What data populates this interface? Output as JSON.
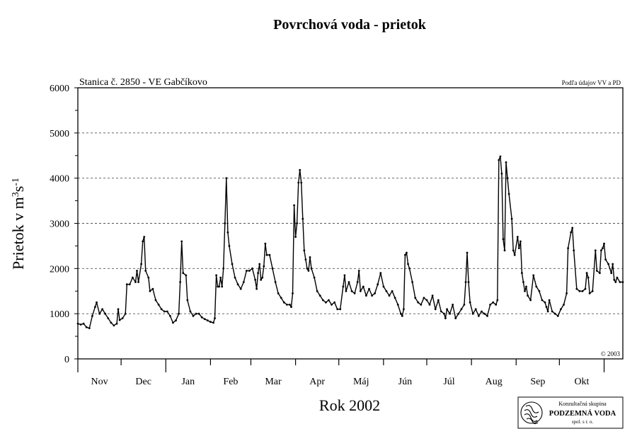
{
  "chart_data": {
    "type": "line",
    "title": "Povrchová voda - prietok",
    "station_label": "Stanica č. 2850 - VE Gabčíkovo",
    "source_note": "Podľa údajov VV a PD",
    "copyright": "© 2003",
    "xlabel": "Rok 2002",
    "ylabel": "Prietok v m³s⁻¹",
    "ylim": [
      0,
      6000
    ],
    "yticks": [
      0,
      1000,
      2000,
      3000,
      4000,
      5000,
      6000
    ],
    "grid": "horizontal dashed",
    "months": [
      "Nov",
      "Dec",
      "Jan",
      "Feb",
      "Mar",
      "Apr",
      "Máj",
      "Jún",
      "Júl",
      "Aug",
      "Sep",
      "Okt"
    ],
    "x_unit": "day index from 1 Nov",
    "series": [
      {
        "points": [
          [
            0,
            780
          ],
          [
            2,
            760
          ],
          [
            4,
            780
          ],
          [
            6,
            700
          ],
          [
            8,
            680
          ],
          [
            10,
            950
          ],
          [
            12,
            1150
          ],
          [
            13,
            1250
          ],
          [
            15,
            1000
          ],
          [
            17,
            1100
          ],
          [
            19,
            1000
          ],
          [
            21,
            900
          ],
          [
            23,
            800
          ],
          [
            25,
            740
          ],
          [
            27,
            780
          ],
          [
            28,
            1100
          ],
          [
            29,
            860
          ],
          [
            31,
            900
          ],
          [
            33,
            1000
          ],
          [
            34,
            1650
          ],
          [
            36,
            1650
          ],
          [
            38,
            1800
          ],
          [
            40,
            1700
          ],
          [
            41,
            1950
          ],
          [
            42,
            1700
          ],
          [
            44,
            2100
          ],
          [
            45,
            2600
          ],
          [
            46,
            2700
          ],
          [
            47,
            1950
          ],
          [
            49,
            1800
          ],
          [
            50,
            1500
          ],
          [
            52,
            1550
          ],
          [
            54,
            1300
          ],
          [
            56,
            1200
          ],
          [
            58,
            1100
          ],
          [
            60,
            1050
          ],
          [
            62,
            1050
          ],
          [
            64,
            950
          ],
          [
            66,
            800
          ],
          [
            68,
            850
          ],
          [
            70,
            1000
          ],
          [
            71,
            1700
          ],
          [
            72,
            2600
          ],
          [
            73,
            1900
          ],
          [
            75,
            1850
          ],
          [
            76,
            1300
          ],
          [
            78,
            1050
          ],
          [
            80,
            950
          ],
          [
            82,
            1000
          ],
          [
            84,
            1000
          ],
          [
            86,
            920
          ],
          [
            88,
            880
          ],
          [
            90,
            850
          ],
          [
            92,
            820
          ],
          [
            94,
            800
          ],
          [
            95,
            900
          ],
          [
            96,
            1850
          ],
          [
            97,
            1600
          ],
          [
            98,
            1600
          ],
          [
            99,
            1800
          ],
          [
            100,
            1600
          ],
          [
            101,
            2000
          ],
          [
            102,
            3000
          ],
          [
            103,
            4000
          ],
          [
            104,
            2800
          ],
          [
            105,
            2500
          ],
          [
            107,
            2100
          ],
          [
            109,
            1800
          ],
          [
            111,
            1650
          ],
          [
            113,
            1550
          ],
          [
            115,
            1700
          ],
          [
            117,
            1950
          ],
          [
            119,
            1950
          ],
          [
            121,
            2000
          ],
          [
            123,
            1750
          ],
          [
            124,
            1550
          ],
          [
            125,
            1900
          ],
          [
            126,
            2100
          ],
          [
            127,
            1750
          ],
          [
            128,
            1800
          ],
          [
            129,
            2050
          ],
          [
            130,
            2550
          ],
          [
            131,
            2300
          ],
          [
            133,
            2300
          ],
          [
            135,
            2000
          ],
          [
            137,
            1700
          ],
          [
            139,
            1450
          ],
          [
            141,
            1350
          ],
          [
            143,
            1250
          ],
          [
            145,
            1200
          ],
          [
            147,
            1200
          ],
          [
            148,
            1150
          ],
          [
            149,
            1450
          ],
          [
            150,
            3400
          ],
          [
            151,
            2700
          ],
          [
            152,
            3000
          ],
          [
            153,
            3900
          ],
          [
            154,
            4180
          ],
          [
            155,
            3900
          ],
          [
            156,
            3100
          ],
          [
            157,
            2400
          ],
          [
            158,
            2200
          ],
          [
            159,
            2000
          ],
          [
            160,
            1950
          ],
          [
            161,
            2250
          ],
          [
            162,
            2000
          ],
          [
            164,
            1800
          ],
          [
            166,
            1500
          ],
          [
            168,
            1400
          ],
          [
            170,
            1300
          ],
          [
            172,
            1250
          ],
          [
            174,
            1300
          ],
          [
            176,
            1200
          ],
          [
            178,
            1250
          ],
          [
            180,
            1100
          ],
          [
            182,
            1100
          ],
          [
            184,
            1600
          ],
          [
            185,
            1850
          ],
          [
            186,
            1500
          ],
          [
            188,
            1700
          ],
          [
            190,
            1500
          ],
          [
            192,
            1450
          ],
          [
            194,
            1700
          ],
          [
            195,
            1950
          ],
          [
            196,
            1500
          ],
          [
            198,
            1600
          ],
          [
            200,
            1400
          ],
          [
            202,
            1550
          ],
          [
            204,
            1400
          ],
          [
            206,
            1450
          ],
          [
            208,
            1650
          ],
          [
            210,
            1900
          ],
          [
            212,
            1600
          ],
          [
            214,
            1500
          ],
          [
            216,
            1400
          ],
          [
            218,
            1500
          ],
          [
            220,
            1350
          ],
          [
            222,
            1200
          ],
          [
            224,
            1000
          ],
          [
            225,
            950
          ],
          [
            226,
            1100
          ],
          [
            227,
            2300
          ],
          [
            228,
            2350
          ],
          [
            229,
            2100
          ],
          [
            230,
            2000
          ],
          [
            232,
            1700
          ],
          [
            234,
            1350
          ],
          [
            236,
            1250
          ],
          [
            238,
            1200
          ],
          [
            240,
            1350
          ],
          [
            242,
            1300
          ],
          [
            244,
            1200
          ],
          [
            246,
            1400
          ],
          [
            248,
            1100
          ],
          [
            250,
            1300
          ],
          [
            252,
            1050
          ],
          [
            254,
            1000
          ],
          [
            255,
            900
          ],
          [
            256,
            1100
          ],
          [
            258,
            1000
          ],
          [
            260,
            1200
          ],
          [
            262,
            900
          ],
          [
            264,
            1000
          ],
          [
            266,
            1100
          ],
          [
            268,
            1200
          ],
          [
            269,
            1700
          ],
          [
            270,
            2350
          ],
          [
            271,
            1700
          ],
          [
            272,
            1250
          ],
          [
            274,
            1000
          ],
          [
            276,
            1100
          ],
          [
            278,
            950
          ],
          [
            280,
            1050
          ],
          [
            282,
            1000
          ],
          [
            284,
            950
          ],
          [
            286,
            1200
          ],
          [
            288,
            1250
          ],
          [
            290,
            1200
          ],
          [
            291,
            1300
          ],
          [
            292,
            4400
          ],
          [
            293,
            4480
          ],
          [
            294,
            4100
          ],
          [
            295,
            2650
          ],
          [
            296,
            2400
          ],
          [
            297,
            4350
          ],
          [
            298,
            4000
          ],
          [
            299,
            3650
          ],
          [
            301,
            3100
          ],
          [
            302,
            2400
          ],
          [
            303,
            2300
          ],
          [
            305,
            2700
          ],
          [
            306,
            2450
          ],
          [
            307,
            2600
          ],
          [
            308,
            1900
          ],
          [
            309,
            1700
          ],
          [
            310,
            1500
          ],
          [
            311,
            1600
          ],
          [
            312,
            1400
          ],
          [
            314,
            1300
          ],
          [
            316,
            1850
          ],
          [
            318,
            1600
          ],
          [
            320,
            1500
          ],
          [
            322,
            1300
          ],
          [
            324,
            1250
          ],
          [
            325,
            1150
          ],
          [
            326,
            1050
          ],
          [
            327,
            1300
          ],
          [
            329,
            1050
          ],
          [
            331,
            1000
          ],
          [
            333,
            950
          ],
          [
            335,
            1100
          ],
          [
            337,
            1200
          ],
          [
            339,
            1450
          ],
          [
            340,
            2450
          ],
          [
            342,
            2800
          ],
          [
            343,
            2900
          ],
          [
            344,
            2400
          ],
          [
            346,
            1550
          ],
          [
            348,
            1500
          ],
          [
            350,
            1500
          ],
          [
            352,
            1550
          ],
          [
            353,
            1900
          ],
          [
            354,
            1800
          ],
          [
            355,
            1450
          ],
          [
            357,
            1500
          ],
          [
            359,
            2400
          ],
          [
            360,
            1950
          ],
          [
            362,
            1900
          ],
          [
            363,
            2400
          ],
          [
            364,
            2450
          ],
          [
            365,
            2550
          ],
          [
            366,
            2200
          ],
          [
            368,
            2100
          ],
          [
            370,
            1900
          ],
          [
            371,
            2100
          ],
          [
            372,
            1750
          ],
          [
            373,
            1700
          ],
          [
            374,
            1800
          ],
          [
            376,
            1700
          ],
          [
            378,
            1700
          ]
        ]
      }
    ]
  },
  "logo": {
    "line1": "Konzultačná skupina",
    "line2": "PODZEMNÁ VODA",
    "line3": "spol. s r. o."
  }
}
